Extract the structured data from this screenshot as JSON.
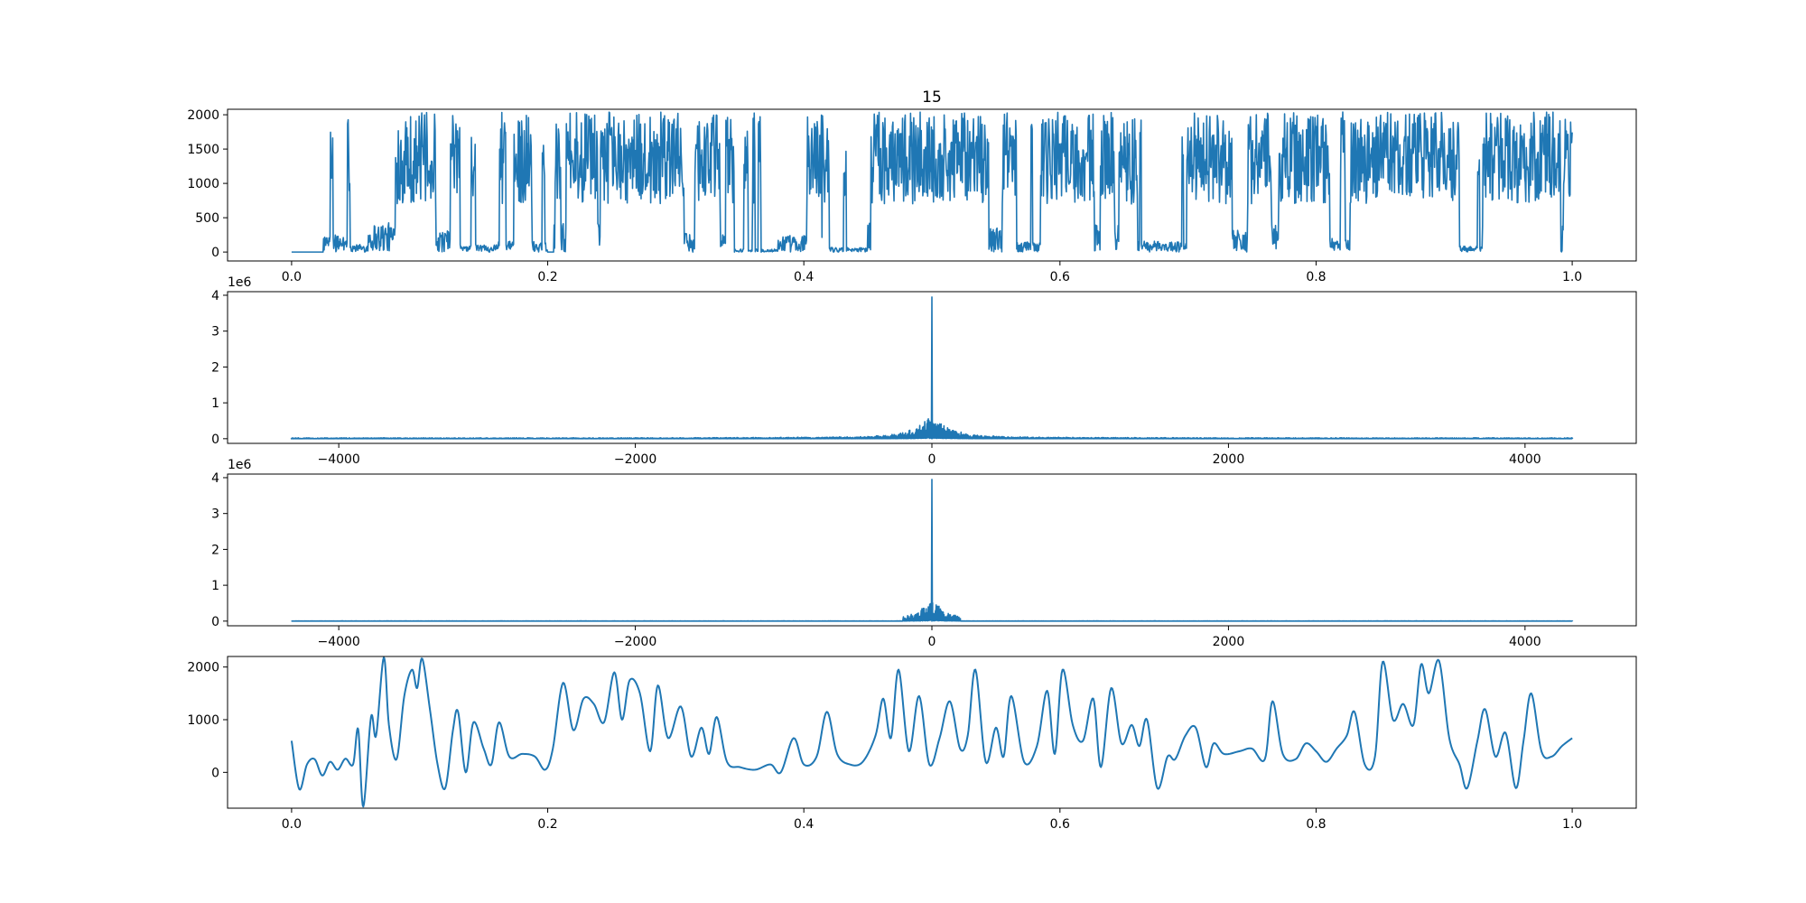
{
  "title": "15",
  "chart_data": [
    {
      "type": "line",
      "description_role": "time-domain signal",
      "x_range": [
        0.0,
        1.0
      ],
      "xlim": [
        -0.05,
        1.05
      ],
      "ylim": [
        -130,
        2080
      ],
      "x_ticks": [
        0.0,
        0.2,
        0.4,
        0.6,
        0.8,
        1.0
      ],
      "x_tick_labels": [
        "0.0",
        "0.2",
        "0.4",
        "0.6",
        "0.8",
        "1.0"
      ],
      "y_ticks": [
        0,
        500,
        1000,
        1500,
        2000
      ],
      "y_tick_labels": [
        "0",
        "500",
        "1000",
        "1500",
        "2000"
      ],
      "offset_text": "",
      "series_color": "#1f77b4",
      "burst_segments": [
        [
          0.0,
          0.025,
          0.05
        ],
        [
          0.025,
          0.045,
          0.55
        ],
        [
          0.045,
          0.06,
          0.25
        ],
        [
          0.06,
          0.11,
          0.95
        ],
        [
          0.11,
          0.13,
          0.7
        ],
        [
          0.13,
          0.16,
          0.25
        ],
        [
          0.16,
          0.2,
          0.35
        ],
        [
          0.2,
          0.205,
          0.0
        ],
        [
          0.205,
          0.3,
          0.95
        ],
        [
          0.3,
          0.34,
          0.6
        ],
        [
          0.34,
          0.38,
          0.1
        ],
        [
          0.38,
          0.42,
          0.55
        ],
        [
          0.42,
          0.45,
          0.15
        ],
        [
          0.45,
          0.52,
          0.95
        ],
        [
          0.52,
          0.56,
          0.8
        ],
        [
          0.56,
          0.59,
          0.35
        ],
        [
          0.59,
          0.66,
          0.95
        ],
        [
          0.66,
          0.7,
          0.35
        ],
        [
          0.7,
          0.76,
          0.75
        ],
        [
          0.76,
          0.8,
          0.9
        ],
        [
          0.8,
          0.83,
          0.45
        ],
        [
          0.83,
          0.91,
          0.95
        ],
        [
          0.91,
          0.93,
          0.2
        ],
        [
          0.93,
          1.0,
          0.9
        ]
      ]
    },
    {
      "type": "line",
      "description_role": "spectrum magnitude",
      "x_range": [
        -4320,
        4320
      ],
      "xlim": [
        -4750,
        4750
      ],
      "ylim": [
        -130000,
        4100000
      ],
      "x_ticks": [
        -4000,
        -2000,
        0,
        2000,
        4000
      ],
      "x_tick_labels": [
        "−4000",
        "−2000",
        "0",
        "2000",
        "4000"
      ],
      "y_ticks": [
        0,
        1000000,
        2000000,
        3000000,
        4000000
      ],
      "y_tick_labels": [
        "0",
        "1",
        "2",
        "3",
        "4"
      ],
      "offset_text": "1e6",
      "peak_value": 3950000,
      "cluster_halfwidth": 250,
      "cluster_max": 620000,
      "baseline_noise": 25000,
      "series_color": "#1f77b4"
    },
    {
      "type": "line",
      "description_role": "filtered spectrum magnitude",
      "x_range": [
        -4320,
        4320
      ],
      "xlim": [
        -4750,
        4750
      ],
      "ylim": [
        -130000,
        4100000
      ],
      "x_ticks": [
        -4000,
        -2000,
        0,
        2000,
        4000
      ],
      "x_tick_labels": [
        "−4000",
        "−2000",
        "0",
        "2000",
        "4000"
      ],
      "y_ticks": [
        0,
        1000000,
        2000000,
        3000000,
        4000000
      ],
      "y_tick_labels": [
        "0",
        "1",
        "2",
        "3",
        "4"
      ],
      "offset_text": "1e6",
      "peak_value": 3950000,
      "cutoff": 195,
      "cluster_max": 620000,
      "series_color": "#1f77b4"
    },
    {
      "type": "line",
      "description_role": "reconstructed signal",
      "x_range": [
        0.0,
        1.0
      ],
      "xlim": [
        -0.05,
        1.05
      ],
      "ylim": [
        -680,
        2200
      ],
      "x_ticks": [
        0.0,
        0.2,
        0.4,
        0.6,
        0.8,
        1.0
      ],
      "x_tick_labels": [
        "0.0",
        "0.2",
        "0.4",
        "0.6",
        "0.8",
        "1.0"
      ],
      "y_ticks": [
        0,
        1000,
        2000
      ],
      "y_tick_labels": [
        "0",
        "1000",
        "2000"
      ],
      "offset_text": "",
      "series_color": "#1f77b4",
      "key_points": [
        [
          0.0,
          600
        ],
        [
          0.006,
          -320
        ],
        [
          0.012,
          150
        ],
        [
          0.018,
          250
        ],
        [
          0.024,
          -60
        ],
        [
          0.03,
          200
        ],
        [
          0.036,
          50
        ],
        [
          0.042,
          260
        ],
        [
          0.048,
          150
        ],
        [
          0.052,
          820
        ],
        [
          0.056,
          -650
        ],
        [
          0.062,
          1050
        ],
        [
          0.066,
          700
        ],
        [
          0.072,
          2180
        ],
        [
          0.076,
          900
        ],
        [
          0.082,
          250
        ],
        [
          0.088,
          1450
        ],
        [
          0.094,
          1950
        ],
        [
          0.098,
          1600
        ],
        [
          0.102,
          2160
        ],
        [
          0.108,
          1200
        ],
        [
          0.114,
          150
        ],
        [
          0.12,
          -300
        ],
        [
          0.126,
          800
        ],
        [
          0.13,
          1150
        ],
        [
          0.136,
          0
        ],
        [
          0.142,
          950
        ],
        [
          0.15,
          450
        ],
        [
          0.156,
          150
        ],
        [
          0.162,
          950
        ],
        [
          0.17,
          300
        ],
        [
          0.18,
          350
        ],
        [
          0.19,
          300
        ],
        [
          0.198,
          50
        ],
        [
          0.204,
          450
        ],
        [
          0.212,
          1700
        ],
        [
          0.22,
          800
        ],
        [
          0.228,
          1400
        ],
        [
          0.236,
          1300
        ],
        [
          0.244,
          950
        ],
        [
          0.252,
          1900
        ],
        [
          0.258,
          1000
        ],
        [
          0.264,
          1750
        ],
        [
          0.272,
          1500
        ],
        [
          0.28,
          400
        ],
        [
          0.286,
          1650
        ],
        [
          0.294,
          650
        ],
        [
          0.304,
          1250
        ],
        [
          0.312,
          300
        ],
        [
          0.32,
          850
        ],
        [
          0.326,
          350
        ],
        [
          0.332,
          1050
        ],
        [
          0.34,
          200
        ],
        [
          0.35,
          100
        ],
        [
          0.362,
          50
        ],
        [
          0.374,
          150
        ],
        [
          0.382,
          0
        ],
        [
          0.392,
          650
        ],
        [
          0.4,
          150
        ],
        [
          0.41,
          300
        ],
        [
          0.418,
          1150
        ],
        [
          0.426,
          350
        ],
        [
          0.436,
          150
        ],
        [
          0.446,
          200
        ],
        [
          0.456,
          700
        ],
        [
          0.462,
          1400
        ],
        [
          0.468,
          650
        ],
        [
          0.474,
          1950
        ],
        [
          0.482,
          400
        ],
        [
          0.49,
          1450
        ],
        [
          0.498,
          150
        ],
        [
          0.506,
          650
        ],
        [
          0.514,
          1350
        ],
        [
          0.522,
          450
        ],
        [
          0.528,
          700
        ],
        [
          0.534,
          1950
        ],
        [
          0.542,
          200
        ],
        [
          0.55,
          850
        ],
        [
          0.556,
          300
        ],
        [
          0.562,
          1450
        ],
        [
          0.572,
          200
        ],
        [
          0.582,
          500
        ],
        [
          0.59,
          1550
        ],
        [
          0.596,
          350
        ],
        [
          0.602,
          1950
        ],
        [
          0.61,
          900
        ],
        [
          0.618,
          600
        ],
        [
          0.626,
          1400
        ],
        [
          0.632,
          100
        ],
        [
          0.64,
          1600
        ],
        [
          0.648,
          550
        ],
        [
          0.656,
          900
        ],
        [
          0.662,
          500
        ],
        [
          0.668,
          1000
        ],
        [
          0.676,
          -300
        ],
        [
          0.684,
          300
        ],
        [
          0.69,
          250
        ],
        [
          0.698,
          700
        ],
        [
          0.706,
          850
        ],
        [
          0.714,
          100
        ],
        [
          0.72,
          550
        ],
        [
          0.728,
          350
        ],
        [
          0.74,
          400
        ],
        [
          0.75,
          450
        ],
        [
          0.76,
          250
        ],
        [
          0.766,
          1350
        ],
        [
          0.774,
          350
        ],
        [
          0.784,
          250
        ],
        [
          0.792,
          550
        ],
        [
          0.8,
          400
        ],
        [
          0.808,
          200
        ],
        [
          0.816,
          450
        ],
        [
          0.824,
          700
        ],
        [
          0.83,
          1150
        ],
        [
          0.838,
          150
        ],
        [
          0.846,
          300
        ],
        [
          0.852,
          2100
        ],
        [
          0.86,
          1000
        ],
        [
          0.868,
          1300
        ],
        [
          0.876,
          900
        ],
        [
          0.882,
          2050
        ],
        [
          0.888,
          1500
        ],
        [
          0.896,
          2120
        ],
        [
          0.904,
          650
        ],
        [
          0.912,
          150
        ],
        [
          0.918,
          -300
        ],
        [
          0.926,
          600
        ],
        [
          0.932,
          1200
        ],
        [
          0.94,
          300
        ],
        [
          0.948,
          750
        ],
        [
          0.956,
          -300
        ],
        [
          0.962,
          600
        ],
        [
          0.968,
          1500
        ],
        [
          0.976,
          400
        ],
        [
          0.984,
          300
        ],
        [
          0.992,
          500
        ],
        [
          1.0,
          650
        ]
      ]
    }
  ]
}
